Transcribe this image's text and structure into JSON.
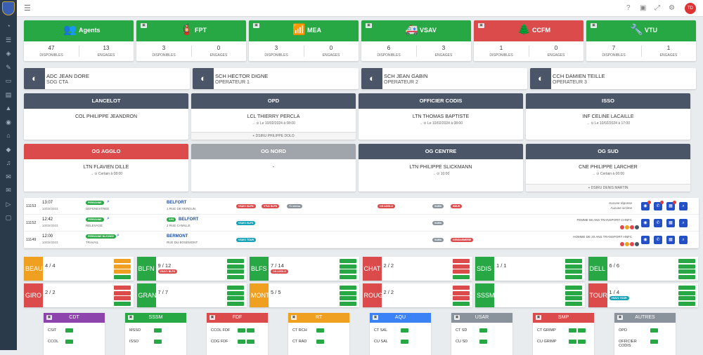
{
  "header": {
    "avatar": "TD"
  },
  "vehicles": [
    {
      "name": "Agents",
      "icon": "👥",
      "color": "#28a745",
      "dispo": "47",
      "engages": "13"
    },
    {
      "name": "FPT",
      "icon": "🧯",
      "color": "#28a745",
      "dispo": "3",
      "engages": "0"
    },
    {
      "name": "MEA",
      "icon": "📶",
      "color": "#28a745",
      "dispo": "3",
      "engages": "0"
    },
    {
      "name": "VSAV",
      "icon": "🚑",
      "color": "#28a745",
      "dispo": "6",
      "engages": "3"
    },
    {
      "name": "CCFM",
      "icon": "🌲",
      "color": "#dc4b4b",
      "dispo": "1",
      "engages": "0"
    },
    {
      "name": "VTU",
      "icon": "🔧",
      "color": "#28a745",
      "dispo": "7",
      "engages": "1"
    }
  ],
  "labels": {
    "dispo": "DISPONIBLES",
    "engages": "ENGAGES"
  },
  "personnel": [
    {
      "name": "ADC JEAN DORE",
      "role": "SOG CTA"
    },
    {
      "name": "SCH HECTOR DIGNE",
      "role": "OPERATEUR 1"
    },
    {
      "name": "SCH JEAN GABIN",
      "role": "OPERATEUR 2"
    },
    {
      "name": "CCH DAMIEN TEILLE",
      "role": "OPERATEUR 3"
    }
  ],
  "officers": [
    {
      "title": "LANCELOT",
      "name": "COL PHILIPPE JEANDRON",
      "sub": "",
      "foot": "",
      "color": "#4a5568"
    },
    {
      "title": "OPD",
      "name": "LCL THIERRY PERCLA",
      "sub": "→ ⊙ Le 10/02/2024 à 08:00",
      "foot": "+ DSIRU PHILIPPE DOLO",
      "color": "#4a5568"
    },
    {
      "title": "OFFICIER CODIS",
      "name": "LTN THOMAS BAPTISTE",
      "sub": "→ ⊙ Le 10/02/2024 à 08:00",
      "foot": "",
      "color": "#4a5568"
    },
    {
      "title": "ISSO",
      "name": "INF CELINE LACAILLE",
      "sub": "→ ⊙ Le 10/02/2024 à 17:00",
      "foot": "",
      "color": "#4a5568"
    },
    {
      "title": "OG AGGLO",
      "name": "LTN FLAVIEN DILLE",
      "sub": "→ ⊙ Certain à 08:00",
      "foot": "",
      "color": "#dc4b4b"
    },
    {
      "title": "OG NORD",
      "name": "-",
      "sub": "",
      "foot": "",
      "color": "#a0a5ab"
    },
    {
      "title": "OG CENTRE",
      "name": "LTN PHILIPPE SLICKMANN",
      "sub": "→ ⊙ 10:00",
      "foot": "",
      "color": "#4a5568"
    },
    {
      "title": "OG SUD",
      "name": "CNE PHILIPPE LARCHER",
      "sub": "→ ⊙ Certain à 06:00",
      "foot": "+ DSIRU DENIS MARTIN",
      "color": "#4a5568"
    }
  ],
  "interventions": [
    {
      "num": "11153",
      "time": "13:07",
      "date": "10/02/2023",
      "type": "PERSONNE",
      "nature": "DEFENESTREE",
      "city": "BELFORT",
      "addr": "1 RUE DE VERDUN",
      "badges": [
        "VSAV1 BLFN",
        "VTU1 BLFS",
        "+1 verrou"
      ],
      "og": "OG AGGLO",
      "grey": "SAMU",
      "red": "SMUR",
      "remark": "Aucune réponse\nAucune victime"
    },
    {
      "num": "11152",
      "time": "12:42",
      "date": "10/02/2023",
      "type": "PERSONNE",
      "nature": "RELEVAGE",
      "city": "BELFORT",
      "addr": "2 RUE CAMILLE",
      "badges": [
        "VSAV1 BLFS"
      ],
      "og": "",
      "grey": "SAMU",
      "red": "",
      "remark": "FEMME 68 ANS TRANSPORT CHNFC"
    },
    {
      "num": "11149",
      "time": "12:00",
      "date": "10/02/2023",
      "type": "PERSONNE BLESSEE",
      "nature": "TRAVAIL",
      "city": "BERMONT",
      "addr": "RUE DU BOSEMONT",
      "badges": [
        "VSAV1 TOUR"
      ],
      "og": "",
      "grey": "SAMU",
      "red": "GENDARMERIE",
      "remark": "HOMME DE 20 ANS TRANSPORT HNFC"
    }
  ],
  "centers": [
    {
      "code": "BEAU",
      "count": "4 / 4",
      "color": "#f0a020"
    },
    {
      "code": "BLFN",
      "count": "9 / 12",
      "color": "#28a745",
      "vehicle": "VSAV1 BLFN"
    },
    {
      "code": "BLFS",
      "count": "7 / 14",
      "color": "#28a745",
      "vehicle": "OG AGGLO"
    },
    {
      "code": "CHAT",
      "count": "2 / 2",
      "color": "#dc4b4b"
    },
    {
      "code": "SDIS",
      "count": "1 / 1",
      "color": "#28a745"
    },
    {
      "code": "DELL",
      "count": "6 / 6",
      "color": "#28a745"
    },
    {
      "code": "GIRO",
      "count": "2 / 2",
      "color": "#dc4b4b"
    },
    {
      "code": "GRAN",
      "count": "7 / 7",
      "color": "#28a745"
    },
    {
      "code": "MONT",
      "count": "5 / 5",
      "color": "#f0a020"
    },
    {
      "code": "ROUG",
      "count": "2 / 2",
      "color": "#dc4b4b"
    },
    {
      "code": "SSSM",
      "count": "",
      "color": "#28a745"
    },
    {
      "code": "TOUR",
      "count": "1 / 4",
      "color": "#dc4b4b",
      "vehicle": "VSAV1 TOUR"
    }
  ],
  "groups": [
    {
      "name": "CDT",
      "color": "#8e44ad",
      "rows": [
        "CSIT",
        "CCOL"
      ]
    },
    {
      "name": "SSSM",
      "color": "#28a745",
      "rows": [
        "MSSO",
        "ISSO"
      ]
    },
    {
      "name": "FDF",
      "color": "#dc4b4b",
      "rows": [
        "CCOL FDF",
        "CDG FDF"
      ]
    },
    {
      "name": "RT",
      "color": "#f0a020",
      "rows": [
        "CT RCH",
        "CT RAD"
      ]
    },
    {
      "name": "AQU",
      "color": "#3b82f6",
      "rows": [
        "CT SAL",
        "CU SAL"
      ]
    },
    {
      "name": "USAR",
      "color": "#8a939c",
      "rows": [
        "CT SD",
        "CU SD"
      ]
    },
    {
      "name": "SMP",
      "color": "#dc4b4b",
      "rows": [
        "CT GRIMP",
        "CU GRIMP"
      ]
    },
    {
      "name": "AUTRES",
      "color": "#8a939c",
      "rows": [
        "OPD",
        "OFFICIER CODIS"
      ]
    }
  ]
}
